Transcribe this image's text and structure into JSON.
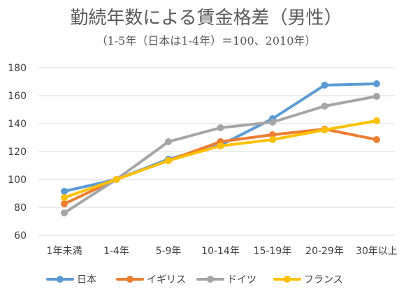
{
  "chart_data": {
    "type": "line",
    "title": "勤続年数による賃金格差（男性）",
    "subtitle": "（1-5年（日本は1-4年）＝100、2010年）",
    "categories": [
      "1年未満",
      "1-4年",
      "5-9年",
      "10-14年",
      "15-19年",
      "20-29年",
      "30年以上"
    ],
    "ylim": [
      60,
      180
    ],
    "yticks": [
      "60",
      "80",
      "100",
      "120",
      "140",
      "160",
      "180"
    ],
    "grid": true,
    "legend_position": "bottom",
    "series": [
      {
        "name": "日本",
        "color": "#5B9BD5",
        "values": [
          91.5,
          100,
          114.5,
          124.5,
          143.5,
          167.5,
          168.5
        ]
      },
      {
        "name": "イギリス",
        "color": "#ED7D31",
        "values": [
          82.5,
          100,
          113.5,
          127,
          132,
          136,
          128.5
        ]
      },
      {
        "name": "ドイツ",
        "color": "#A5A5A5",
        "values": [
          76,
          100,
          127,
          137,
          141,
          152.5,
          159.5
        ]
      },
      {
        "name": "フランス",
        "color": "#FFC000",
        "values": [
          87,
          100,
          113.5,
          124,
          128.5,
          135.5,
          142
        ]
      }
    ]
  }
}
